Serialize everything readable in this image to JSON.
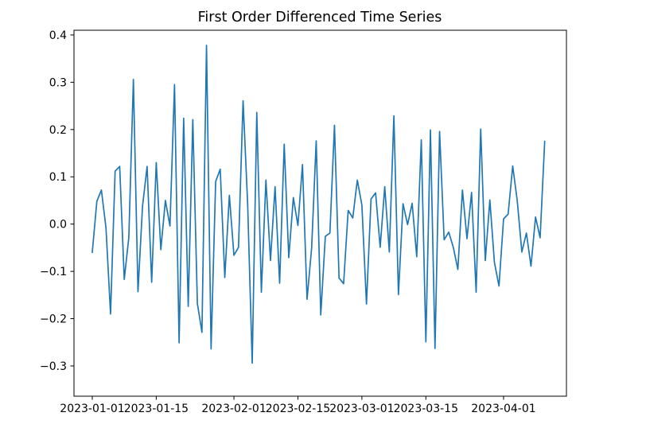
{
  "figure_title": "First Order Differenced Time Series",
  "chart_data": {
    "type": "line",
    "title": "First Order Differenced Time Series",
    "xlabel": "",
    "ylabel": "",
    "grid": false,
    "legend": false,
    "line_color": "#1f77b4",
    "axis_color": "#000000",
    "background_color": "#ffffff",
    "x_start_date": "2023-01-01",
    "x_end_date": "2023-04-10",
    "x_step_days": 1,
    "n_points": 100,
    "values": [
      -0.06,
      0.048,
      0.072,
      -0.008,
      -0.19,
      0.112,
      0.122,
      -0.117,
      -0.028,
      0.306,
      -0.143,
      0.038,
      0.122,
      -0.123,
      0.13,
      -0.054,
      0.05,
      -0.004,
      0.295,
      -0.251,
      0.224,
      -0.174,
      0.221,
      -0.168,
      -0.229,
      0.378,
      -0.264,
      0.09,
      0.116,
      -0.113,
      0.061,
      -0.066,
      -0.049,
      0.261,
      0.043,
      -0.294,
      0.236,
      -0.144,
      0.093,
      -0.077,
      0.079,
      -0.125,
      0.169,
      -0.071,
      0.056,
      -0.003,
      0.126,
      -0.159,
      -0.051,
      0.176,
      -0.192,
      -0.026,
      -0.019,
      0.209,
      -0.114,
      -0.126,
      0.029,
      0.013,
      0.093,
      0.04,
      -0.169,
      0.053,
      0.066,
      -0.049,
      0.079,
      -0.059,
      0.229,
      -0.149,
      0.043,
      -0.001,
      0.044,
      -0.069,
      0.178,
      -0.249,
      0.199,
      -0.263,
      0.196,
      -0.033,
      -0.017,
      -0.049,
      -0.096,
      0.072,
      -0.031,
      0.067,
      -0.144,
      0.201,
      -0.077,
      0.051,
      -0.081,
      -0.131,
      0.011,
      0.021,
      0.123,
      0.049,
      -0.059,
      -0.019,
      -0.089,
      0.015,
      -0.029,
      0.175
    ],
    "x_ticks": [
      {
        "day": 0,
        "label": "2023-01-01"
      },
      {
        "day": 14,
        "label": "2023-01-15"
      },
      {
        "day": 31,
        "label": "2023-02-01"
      },
      {
        "day": 45,
        "label": "2023-02-15"
      },
      {
        "day": 59,
        "label": "2023-03-01"
      },
      {
        "day": 73,
        "label": "2023-03-15"
      },
      {
        "day": 90,
        "label": "2023-04-01"
      }
    ],
    "y_ticks": [
      {
        "value": 0.4,
        "label": "0.4"
      },
      {
        "value": 0.3,
        "label": "0.3"
      },
      {
        "value": 0.2,
        "label": "0.2"
      },
      {
        "value": 0.1,
        "label": "0.1"
      },
      {
        "value": 0.0,
        "label": "0.0"
      },
      {
        "value": -0.1,
        "label": "−0.1"
      },
      {
        "value": -0.2,
        "label": "−0.2"
      },
      {
        "value": -0.3,
        "label": "−0.3"
      }
    ],
    "xlim_days": [
      -4.0,
      103.76
    ],
    "ylim": [
      -0.364,
      0.41
    ]
  }
}
